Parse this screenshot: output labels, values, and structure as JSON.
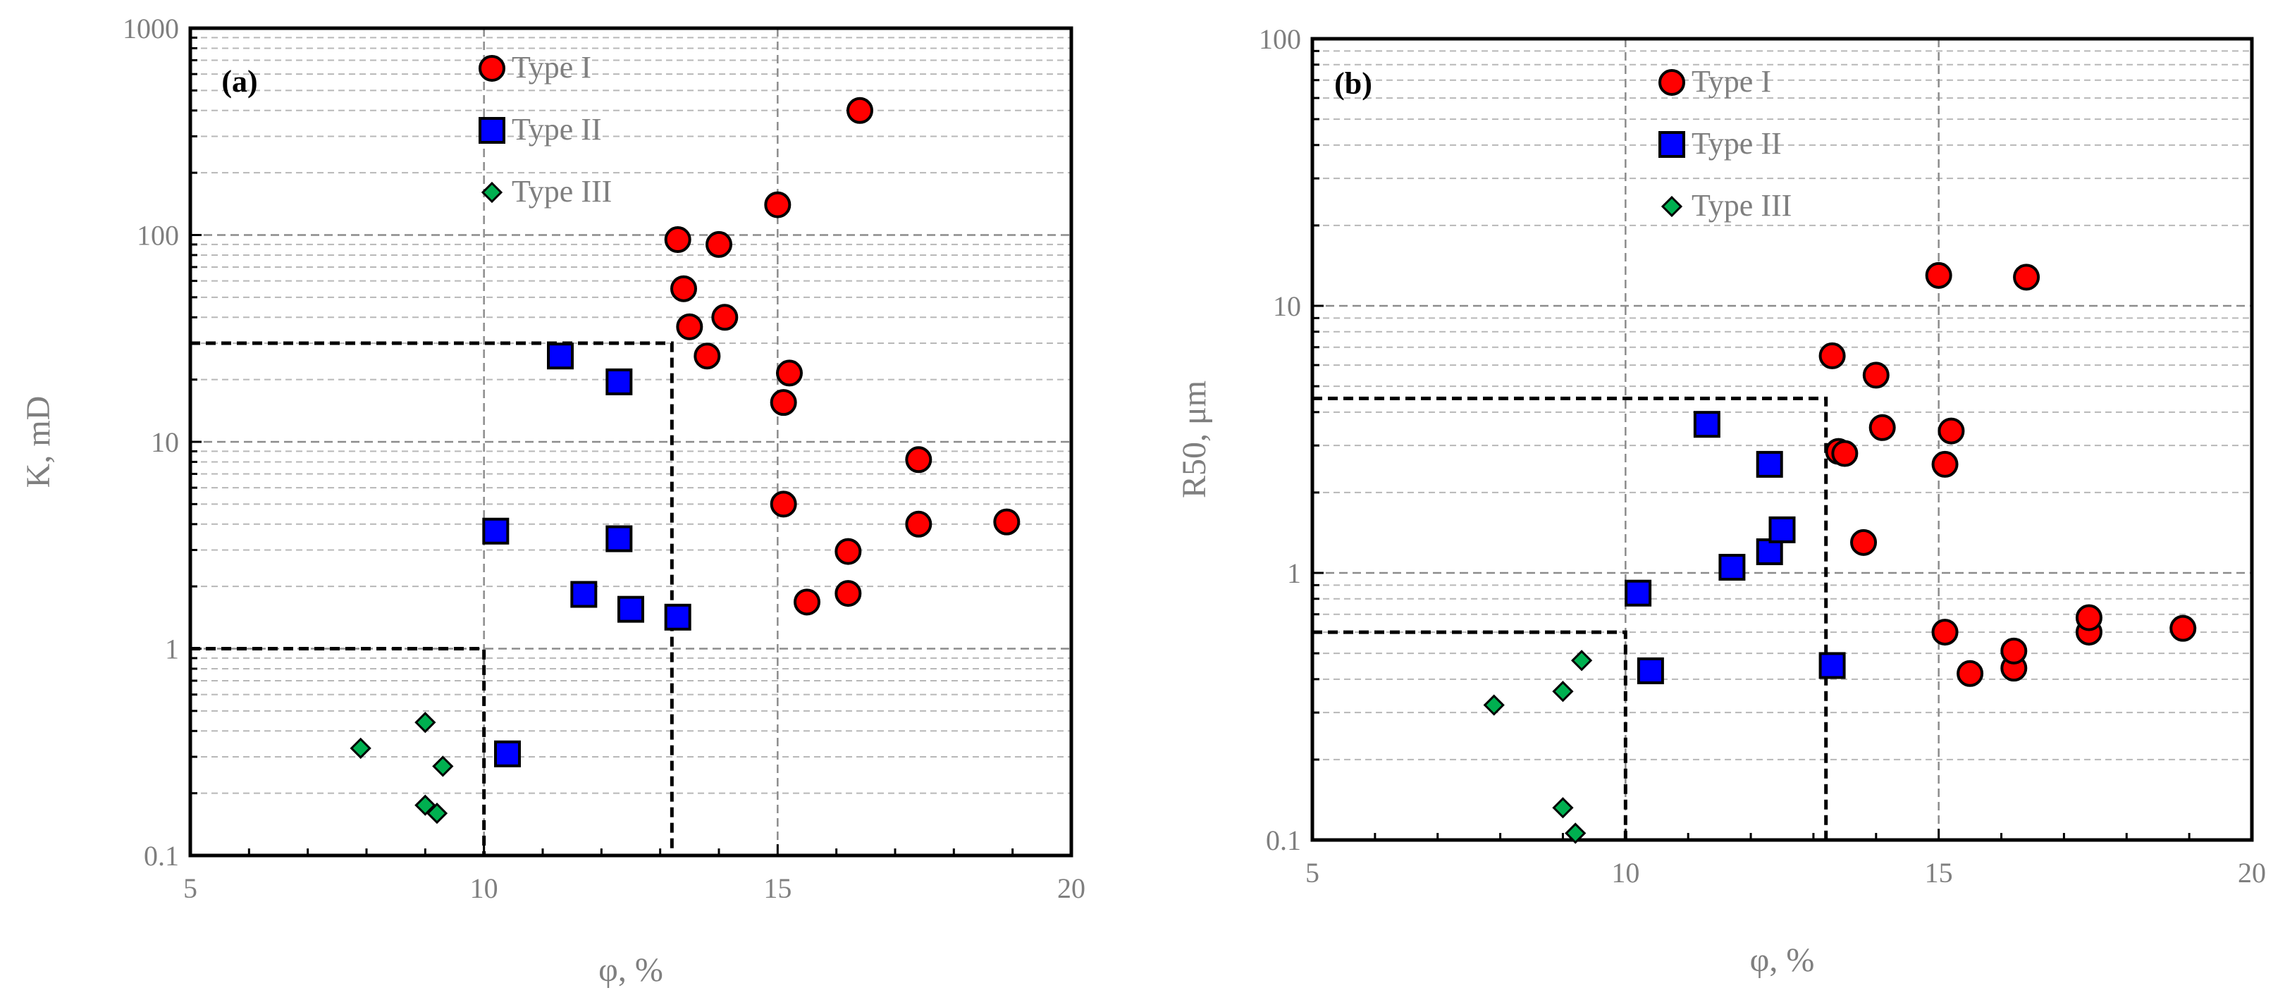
{
  "chart_data": [
    {
      "type": "scatter",
      "panel_label": "(a)",
      "xlabel": "φ, %",
      "ylabel": "K, mD",
      "yscale": "log",
      "xlim": [
        5,
        20
      ],
      "ylim": [
        0.1,
        1000
      ],
      "xticks": [
        5,
        10,
        15,
        20
      ],
      "xtick_labels": [
        "5",
        "10",
        "15",
        "20"
      ],
      "yticks": [
        0.1,
        1,
        10,
        100,
        1000
      ],
      "ytick_labels": [
        "0.1",
        "1",
        "10",
        "100",
        "1000"
      ],
      "legend_position": "top-left",
      "series": [
        {
          "name": "Type I",
          "marker": "circle",
          "color": "#ff0000",
          "x": [
            13.3,
            13.4,
            13.5,
            13.8,
            14.0,
            14.1,
            15.0,
            15.1,
            15.1,
            15.2,
            15.5,
            16.2,
            16.2,
            16.4,
            17.4,
            17.4,
            18.9
          ],
          "y": [
            95,
            55,
            36,
            26,
            90,
            40,
            140,
            5,
            15.5,
            21.5,
            1.68,
            1.85,
            2.95,
            400,
            8.2,
            4,
            4.1
          ]
        },
        {
          "name": "Type II",
          "marker": "square",
          "color": "#0000ff",
          "x": [
            10.2,
            10.4,
            11.3,
            11.7,
            12.3,
            12.3,
            12.5,
            13.3
          ],
          "y": [
            3.7,
            0.31,
            26,
            1.83,
            19.5,
            3.4,
            1.55,
            1.42
          ]
        },
        {
          "name": "Type III",
          "marker": "diamond",
          "color": "#00b050",
          "x": [
            7.9,
            9.0,
            9.0,
            9.2,
            9.3
          ],
          "y": [
            0.33,
            0.44,
            0.175,
            0.16,
            0.27
          ]
        }
      ],
      "guide_lines": [
        {
          "x": 10.0,
          "y": 1
        },
        {
          "x": 13.2,
          "y": 30
        }
      ]
    },
    {
      "type": "scatter",
      "panel_label": "(b)",
      "xlabel": "φ, %",
      "ylabel": "R50, μm",
      "yscale": "log",
      "xlim": [
        5,
        20
      ],
      "ylim": [
        0.1,
        100
      ],
      "xticks": [
        5,
        10,
        15,
        20
      ],
      "xtick_labels": [
        "5",
        "10",
        "15",
        "20"
      ],
      "yticks": [
        0.1,
        1,
        10,
        100
      ],
      "ytick_labels": [
        "0.1",
        "1",
        "10",
        "100"
      ],
      "legend_position": "top-left",
      "series": [
        {
          "name": "Type I",
          "marker": "circle",
          "color": "#ff0000",
          "x": [
            13.3,
            13.4,
            13.5,
            13.8,
            14.0,
            14.1,
            15.0,
            15.1,
            15.1,
            15.2,
            15.5,
            16.2,
            16.2,
            16.4,
            17.4,
            17.4,
            18.9
          ],
          "y": [
            6.5,
            2.85,
            2.8,
            1.3,
            5.5,
            3.5,
            13,
            2.55,
            0.6,
            3.4,
            0.42,
            0.44,
            0.51,
            12.8,
            0.6,
            0.68,
            0.62
          ]
        },
        {
          "name": "Type II",
          "marker": "square",
          "color": "#0000ff",
          "x": [
            10.2,
            10.4,
            11.3,
            11.7,
            12.3,
            12.3,
            12.5,
            13.3
          ],
          "y": [
            0.84,
            0.43,
            3.6,
            1.05,
            2.55,
            1.2,
            1.45,
            0.45
          ]
        },
        {
          "name": "Type III",
          "marker": "diamond",
          "color": "#00b050",
          "x": [
            7.9,
            9.0,
            9.0,
            9.2,
            9.3
          ],
          "y": [
            0.32,
            0.36,
            0.132,
            0.106,
            0.47
          ]
        }
      ],
      "guide_lines": [
        {
          "x": 10.0,
          "y": 0.6
        },
        {
          "x": 13.2,
          "y": 4.5
        }
      ]
    }
  ]
}
